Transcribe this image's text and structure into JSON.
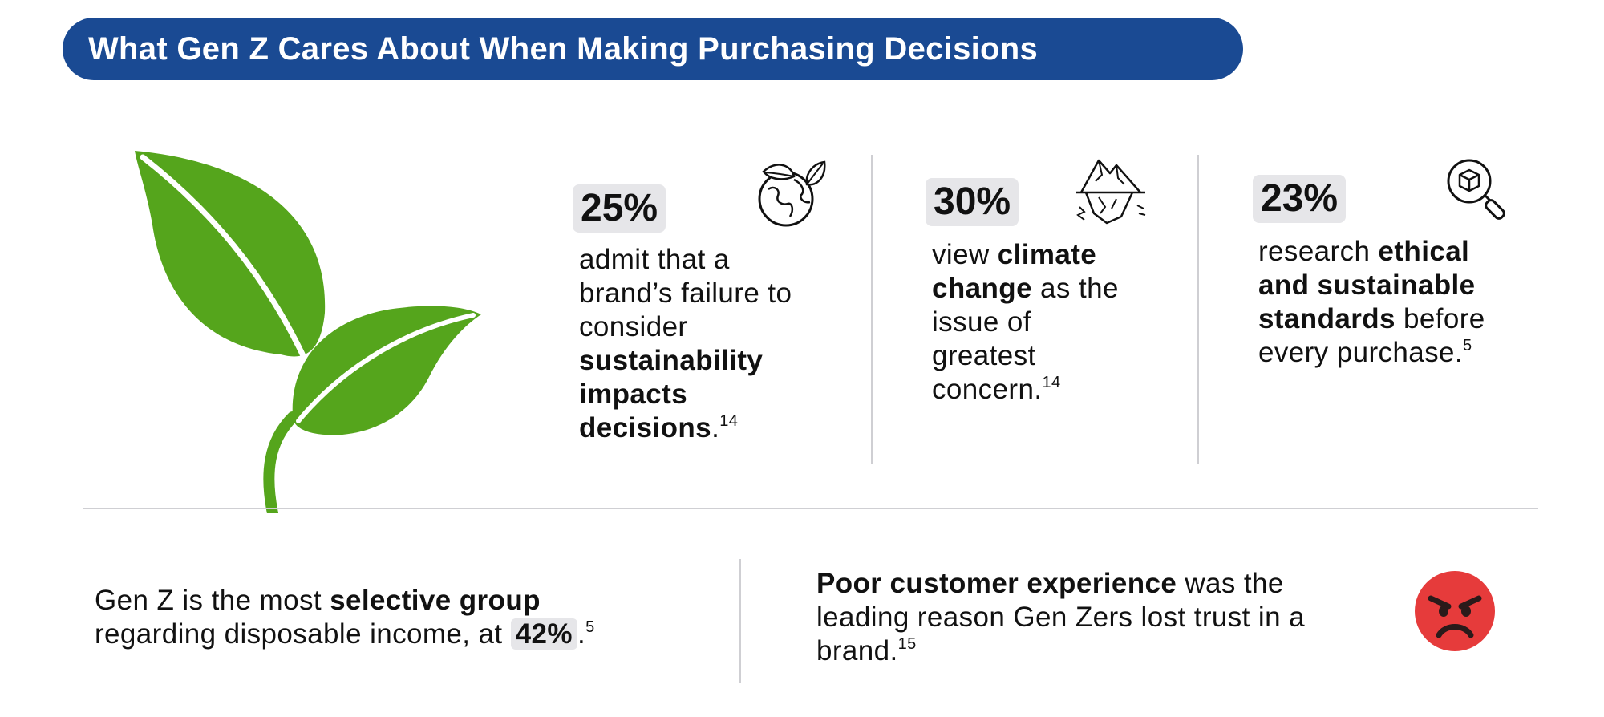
{
  "header": {
    "title": "What Gen Z Cares About When Making Purchasing Decisions"
  },
  "colors": {
    "header_bg": "#1a4a93",
    "leaf_green": "#55a51c",
    "badge_bg": "#e6e6e9",
    "emoji_red": "#e63b3b"
  },
  "stats": [
    {
      "value": "25%",
      "icon": "earth-leaves-icon",
      "parts": [
        {
          "text": "admit that a brand’s failure to consider ",
          "bold": false
        },
        {
          "text": "sustainability impacts decisions",
          "bold": true
        },
        {
          "text": ".",
          "bold": false
        }
      ],
      "footnote": "14"
    },
    {
      "value": "30%",
      "icon": "melting-iceberg-icon",
      "parts": [
        {
          "text": "view ",
          "bold": false
        },
        {
          "text": "climate change",
          "bold": true
        },
        {
          "text": " as the issue of greatest concern.",
          "bold": false
        }
      ],
      "footnote": "14"
    },
    {
      "value": "23%",
      "icon": "magnifier-box-icon",
      "parts": [
        {
          "text": "research ",
          "bold": false
        },
        {
          "text": "ethical and sustainable standards",
          "bold": true
        },
        {
          "text": " before every purchase.",
          "bold": false
        }
      ],
      "footnote": "5"
    }
  ],
  "bottom_left": {
    "line1_a": "Gen Z is the most ",
    "line1_b": "selective group",
    "line2_a": "regarding disposable income, at ",
    "value": "42%",
    "period": ".",
    "footnote": "5"
  },
  "bottom_right": {
    "bold": "Poor customer experience",
    "rest": " was the leading reason Gen Zers lost trust in a brand.",
    "footnote": "15",
    "icon": "angry-face-icon"
  }
}
